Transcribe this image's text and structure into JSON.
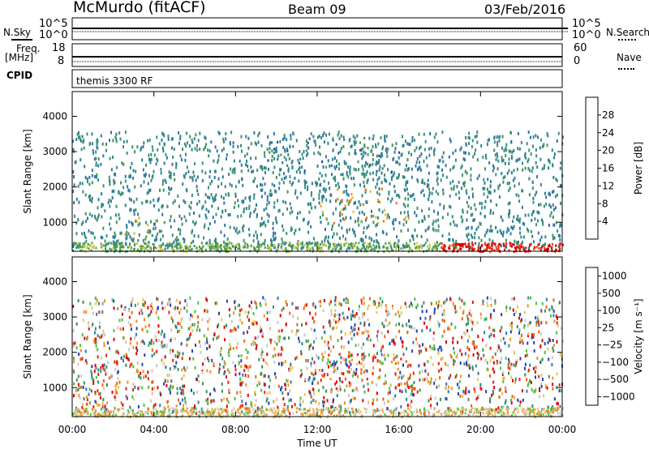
{
  "header": {
    "station": "McMurdo (fitACF)",
    "beam": "Beam 09",
    "date": "03/Feb/2016"
  },
  "top_panels": {
    "nsky_label": "N.Sky",
    "nsky_ticks": [
      "10^5",
      "10^0"
    ],
    "nsearch_label": "N.Search",
    "nsearch_ticks": [
      "10^5",
      "10^0"
    ],
    "freq_label": "Freq.",
    "freq_unit": "[MHz]",
    "freq_ticks": [
      "18",
      "8"
    ],
    "nave_label": "Nave",
    "nave_ticks": [
      "60",
      "0"
    ],
    "cpid_label": "CPID",
    "cpid_value": "themis 3300 RF"
  },
  "chart_data": [
    {
      "type": "heatmap",
      "panel": "power",
      "ylabel": "Slant Range [km]",
      "ylim": [
        180,
        4700
      ],
      "y_ticks": [
        1000,
        2000,
        3000,
        4000
      ],
      "colorbar_label": "Power [dB]",
      "colorbar_ticks": [
        "4",
        "8",
        "12",
        "16",
        "20",
        "24",
        "28"
      ],
      "colorscale": [
        "#1a1aff",
        "#2050b0",
        "#2e7aa0",
        "#3a9070",
        "#4aa040",
        "#c8c840",
        "#f0a020",
        "#f07020",
        "#e83010",
        "#d80000"
      ],
      "features": [
        {
          "x": [
            0.0,
            5.5
          ],
          "y": [
            450,
            700
          ],
          "level": 0.35
        },
        {
          "x": [
            12.0,
            16.5
          ],
          "y": [
            1000,
            2000
          ],
          "level": 0.65
        },
        {
          "x": [
            18.0,
            24.0
          ],
          "y": [
            200,
            450
          ],
          "level": 0.9
        },
        {
          "x": [
            9.5,
            16.0
          ],
          "y": [
            2300,
            3500
          ],
          "level": 0.3
        },
        {
          "x": [
            2.5,
            4.5
          ],
          "y": [
            600,
            1200
          ],
          "level": 0.6
        }
      ]
    },
    {
      "type": "heatmap",
      "panel": "velocity",
      "ylabel": "Slant Range [km]",
      "xlabel": "Time UT",
      "x_tick_labels": [
        "00:00",
        "04:00",
        "08:00",
        "12:00",
        "16:00",
        "20:00",
        "00:00"
      ],
      "x_ticks_hours": [
        0,
        4,
        8,
        12,
        16,
        20,
        24
      ],
      "ylim": [
        180,
        4700
      ],
      "y_ticks": [
        1000,
        2000,
        3000,
        4000
      ],
      "colorbar_label": "Velocity [m s⁻¹]",
      "colorbar_ticks": [
        "1000",
        "500",
        "100",
        "25",
        "−25",
        "−100",
        "−500",
        "−1000"
      ],
      "colorscale": [
        "#2040c0",
        "#2e7aa0",
        "#3a9060",
        "#50c040",
        "#c8c8c8",
        "#f0c060",
        "#f09020",
        "#f06010",
        "#e82010",
        "#d80000"
      ],
      "features": [
        {
          "x": [
            0.0,
            5.5
          ],
          "y": [
            350,
            650
          ],
          "level": 0.7
        },
        {
          "x": [
            12.0,
            16.5
          ],
          "y": [
            1000,
            2000
          ],
          "level": 0.75
        },
        {
          "x": [
            11.5,
            15.0
          ],
          "y": [
            2900,
            3500
          ],
          "level": 0.5
        },
        {
          "x": [
            18.0,
            24.0
          ],
          "y": [
            300,
            550
          ],
          "level": 0.3
        },
        {
          "x": [
            7.5,
            9.5
          ],
          "y": [
            1700,
            2400
          ],
          "level": 0.35
        }
      ]
    }
  ]
}
